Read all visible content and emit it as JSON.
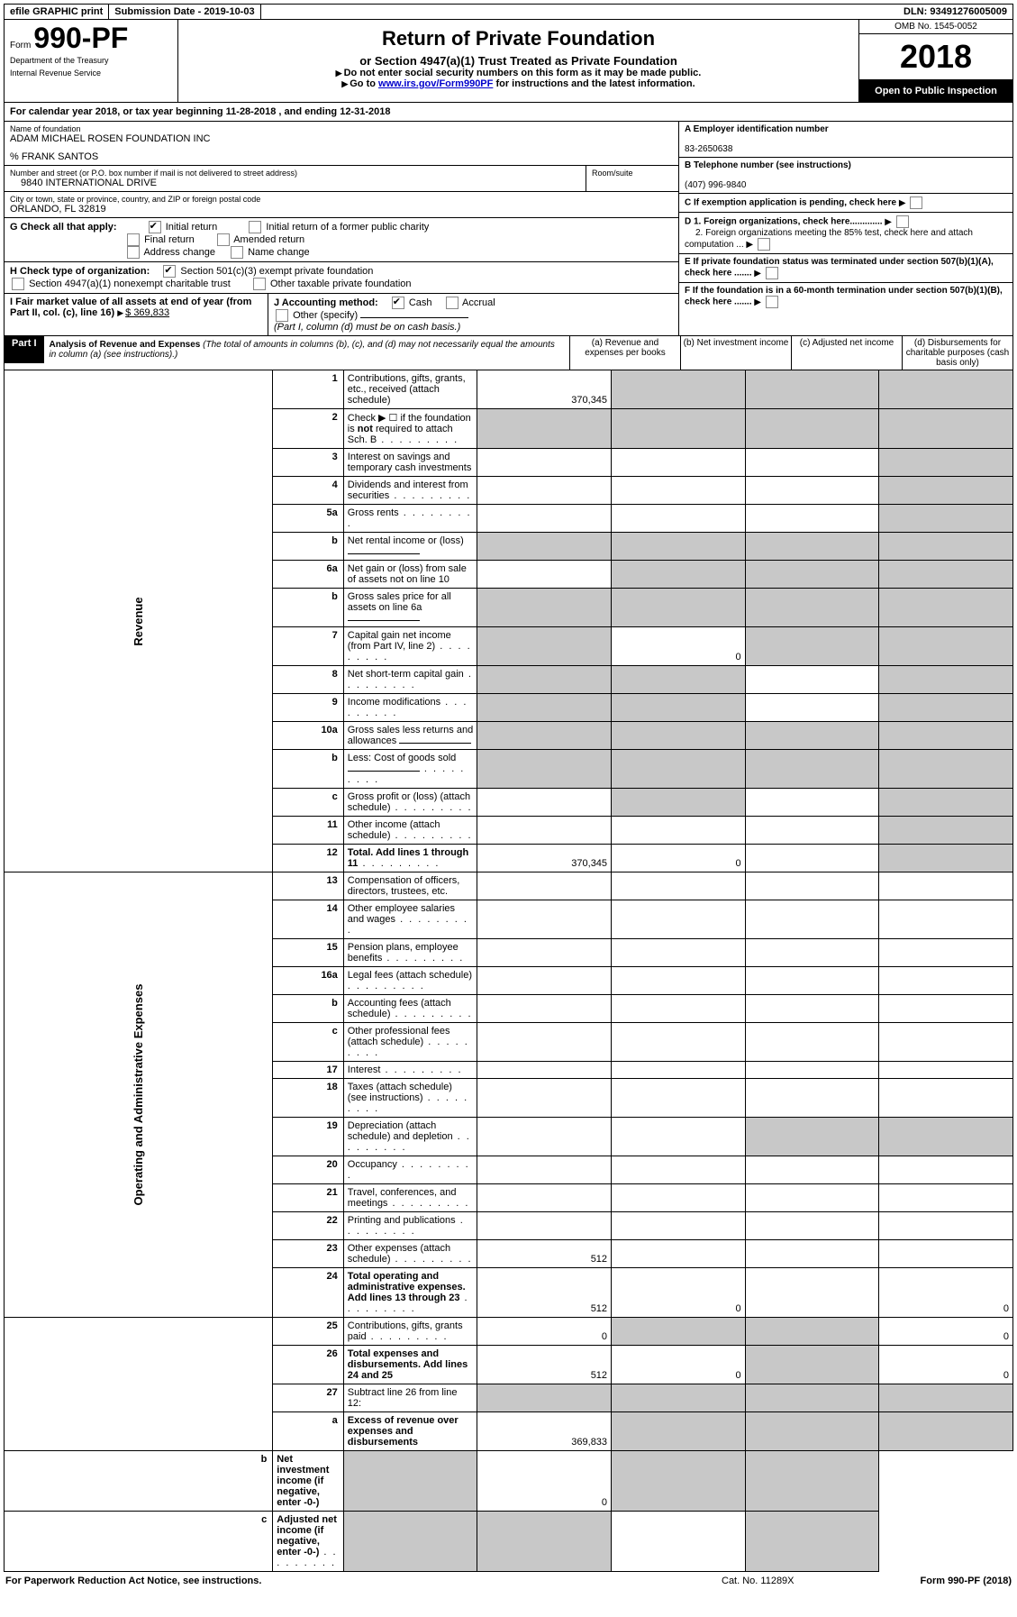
{
  "topbar": {
    "efile": "efile GRAPHIC print",
    "submission": "Submission Date - 2019-10-03",
    "dln": "DLN: 93491276005009"
  },
  "header": {
    "form_prefix": "Form",
    "form_number": "990-PF",
    "dept1": "Department of the Treasury",
    "dept2": "Internal Revenue Service",
    "title": "Return of Private Foundation",
    "subtitle": "or Section 4947(a)(1) Trust Treated as Private Foundation",
    "warn": "Do not enter social security numbers on this form as it may be made public.",
    "goto_pre": "Go to ",
    "goto_link": "www.irs.gov/Form990PF",
    "goto_post": " for instructions and the latest information.",
    "omb": "OMB No. 1545-0052",
    "year": "2018",
    "open": "Open to Public Inspection"
  },
  "calyear": "For calendar year 2018, or tax year beginning 11-28-2018                         , and ending 12-31-2018",
  "entity": {
    "name_label": "Name of foundation",
    "name": "ADAM MICHAEL ROSEN FOUNDATION INC",
    "care_of": "% FRANK SANTOS",
    "street_label": "Number and street (or P.O. box number if mail is not delivered to street address)",
    "room_label": "Room/suite",
    "street": "9840 INTERNATIONAL DRIVE",
    "city_label": "City or town, state or province, country, and ZIP or foreign postal code",
    "city": "ORLANDO, FL  32819",
    "a_label": "A Employer identification number",
    "ein": "83-2650638",
    "b_label": "B Telephone number (see instructions)",
    "phone": "(407) 996-9840",
    "c_label": "C If exemption application is pending, check here",
    "d1": "D 1. Foreign organizations, check here.............",
    "d2": "2. Foreign organizations meeting the 85% test, check here and attach computation ...",
    "e": "E  If private foundation status was terminated under section 507(b)(1)(A), check here .......",
    "f": "F  If the foundation is in a 60-month termination under section 507(b)(1)(B), check here .......",
    "g_label": "G Check all that apply:",
    "g_opts": [
      "Initial return",
      "Initial return of a former public charity",
      "Final return",
      "Amended return",
      "Address change",
      "Name change"
    ],
    "h_label": "H Check type of organization:",
    "h_opts": [
      "Section 501(c)(3) exempt private foundation",
      "Section 4947(a)(1) nonexempt charitable trust",
      "Other taxable private foundation"
    ],
    "i_label": "I Fair market value of all assets at end of year (from Part II, col. (c), line 16)",
    "i_val": "$  369,833",
    "j_label": "J Accounting method:",
    "j_opts": [
      "Cash",
      "Accrual",
      "Other (specify)"
    ],
    "j_note": "(Part I, column (d) must be on cash basis.)"
  },
  "part1": {
    "label": "Part I",
    "title": "Analysis of Revenue and Expenses",
    "note": "(The total of amounts in columns (b), (c), and (d) may not necessarily equal the amounts in column (a) (see instructions).)",
    "col_a": "(a)   Revenue and expenses per books",
    "col_b": "(b)  Net investment income",
    "col_c": "(c)  Adjusted net income",
    "col_d": "(d)  Disbursements for charitable purposes (cash basis only)"
  },
  "sections": {
    "revenue": "Revenue",
    "opex": "Operating and Administrative Expenses"
  },
  "lines": [
    {
      "n": "1",
      "d": "Contributions, gifts, grants, etc., received (attach schedule)",
      "a": "370,345",
      "ga": false,
      "gb": true,
      "gc": true,
      "gd": true
    },
    {
      "n": "2",
      "d": "Check ▶ ☐ if the foundation is not required to attach Sch. B",
      "dots": true,
      "ga": true,
      "gb": true,
      "gc": true,
      "gd": true,
      "bold_not": true
    },
    {
      "n": "3",
      "d": "Interest on savings and temporary cash investments",
      "ga": false,
      "gb": false,
      "gc": false,
      "gd": true
    },
    {
      "n": "4",
      "d": "Dividends and interest from securities",
      "dots": true,
      "ga": false,
      "gb": false,
      "gc": false,
      "gd": true
    },
    {
      "n": "5a",
      "d": "Gross rents",
      "dots": true,
      "ga": false,
      "gb": false,
      "gc": false,
      "gd": true
    },
    {
      "n": "b",
      "d": "Net rental income or (loss)",
      "uf": true,
      "ga": true,
      "gb": true,
      "gc": true,
      "gd": true
    },
    {
      "n": "6a",
      "d": "Net gain or (loss) from sale of assets not on line 10",
      "ga": false,
      "gb": true,
      "gc": true,
      "gd": true
    },
    {
      "n": "b",
      "d": "Gross sales price for all assets on line 6a",
      "uf": true,
      "ga": true,
      "gb": true,
      "gc": true,
      "gd": true
    },
    {
      "n": "7",
      "d": "Capital gain net income (from Part IV, line 2)",
      "dots": true,
      "b": "0",
      "ga": true,
      "gb": false,
      "gc": true,
      "gd": true
    },
    {
      "n": "8",
      "d": "Net short-term capital gain",
      "dots": true,
      "ga": true,
      "gb": true,
      "gc": false,
      "gd": true
    },
    {
      "n": "9",
      "d": "Income modifications",
      "dots": true,
      "ga": true,
      "gb": true,
      "gc": false,
      "gd": true
    },
    {
      "n": "10a",
      "d": "Gross sales less returns and allowances",
      "uf": true,
      "box": true,
      "ga": true,
      "gb": true,
      "gc": true,
      "gd": true
    },
    {
      "n": "b",
      "d": "Less: Cost of goods sold",
      "dots": true,
      "uf": true,
      "box": true,
      "ga": true,
      "gb": true,
      "gc": true,
      "gd": true
    },
    {
      "n": "c",
      "d": "Gross profit or (loss) (attach schedule)",
      "dots": true,
      "ga": false,
      "gb": true,
      "gc": false,
      "gd": true
    },
    {
      "n": "11",
      "d": "Other income (attach schedule)",
      "dots": true,
      "ga": false,
      "gb": false,
      "gc": false,
      "gd": true
    },
    {
      "n": "12",
      "d": "Total. Add lines 1 through 11",
      "dots": true,
      "bold": true,
      "a": "370,345",
      "b": "0",
      "ga": false,
      "gb": false,
      "gc": false,
      "gd": true
    },
    {
      "n": "13",
      "d": "Compensation of officers, directors, trustees, etc.",
      "ga": false,
      "gb": false,
      "gc": false,
      "gd": false
    },
    {
      "n": "14",
      "d": "Other employee salaries and wages",
      "dots": true,
      "ga": false,
      "gb": false,
      "gc": false,
      "gd": false
    },
    {
      "n": "15",
      "d": "Pension plans, employee benefits",
      "dots": true,
      "ga": false,
      "gb": false,
      "gc": false,
      "gd": false
    },
    {
      "n": "16a",
      "d": "Legal fees (attach schedule)",
      "dots": true,
      "ga": false,
      "gb": false,
      "gc": false,
      "gd": false
    },
    {
      "n": "b",
      "d": "Accounting fees (attach schedule)",
      "dots": true,
      "ga": false,
      "gb": false,
      "gc": false,
      "gd": false
    },
    {
      "n": "c",
      "d": "Other professional fees (attach schedule)",
      "dots": true,
      "ga": false,
      "gb": false,
      "gc": false,
      "gd": false
    },
    {
      "n": "17",
      "d": "Interest",
      "dots": true,
      "ga": false,
      "gb": false,
      "gc": false,
      "gd": false
    },
    {
      "n": "18",
      "d": "Taxes (attach schedule) (see instructions)",
      "dots": true,
      "ga": false,
      "gb": false,
      "gc": false,
      "gd": false
    },
    {
      "n": "19",
      "d": "Depreciation (attach schedule) and depletion",
      "dots": true,
      "ga": false,
      "gb": false,
      "gc": true,
      "gd": true
    },
    {
      "n": "20",
      "d": "Occupancy",
      "dots": true,
      "ga": false,
      "gb": false,
      "gc": false,
      "gd": false
    },
    {
      "n": "21",
      "d": "Travel, conferences, and meetings",
      "dots": true,
      "ga": false,
      "gb": false,
      "gc": false,
      "gd": false
    },
    {
      "n": "22",
      "d": "Printing and publications",
      "dots": true,
      "ga": false,
      "gb": false,
      "gc": false,
      "gd": false
    },
    {
      "n": "23",
      "d": "Other expenses (attach schedule)",
      "dots": true,
      "a": "512",
      "ga": false,
      "gb": false,
      "gc": false,
      "gd": false
    },
    {
      "n": "24",
      "d": "Total operating and administrative expenses. Add lines 13 through 23",
      "dots": true,
      "bold": true,
      "a": "512",
      "b": "0",
      "dv": "0",
      "ga": false,
      "gb": false,
      "gc": false,
      "gd": false
    },
    {
      "n": "25",
      "d": "Contributions, gifts, grants paid",
      "dots": true,
      "a": "0",
      "dv": "0",
      "ga": false,
      "gb": true,
      "gc": true,
      "gd": false
    },
    {
      "n": "26",
      "d": "Total expenses and disbursements. Add lines 24 and 25",
      "bold": true,
      "a": "512",
      "b": "0",
      "dv": "0",
      "ga": false,
      "gb": false,
      "gc": true,
      "gd": false
    },
    {
      "n": "27",
      "d": "Subtract line 26 from line 12:",
      "bold": false,
      "ga": true,
      "gb": true,
      "gc": true,
      "gd": true,
      "noborder": true
    },
    {
      "n": "a",
      "d": "Excess of revenue over expenses and disbursements",
      "bold": true,
      "a": "369,833",
      "ga": false,
      "gb": true,
      "gc": true,
      "gd": true
    },
    {
      "n": "b",
      "d": "Net investment income (if negative, enter -0-)",
      "bold": true,
      "b": "0",
      "ga": true,
      "gb": false,
      "gc": true,
      "gd": true
    },
    {
      "n": "c",
      "d": "Adjusted net income (if negative, enter -0-)",
      "bold": true,
      "dots": true,
      "ga": true,
      "gb": true,
      "gc": false,
      "gd": true
    }
  ],
  "footer": {
    "left": "For Paperwork Reduction Act Notice, see instructions.",
    "cat": "Cat. No. 11289X",
    "right": "Form 990-PF (2018)"
  },
  "colors": {
    "grey": "#c8c8c8",
    "link": "#0000cc"
  }
}
